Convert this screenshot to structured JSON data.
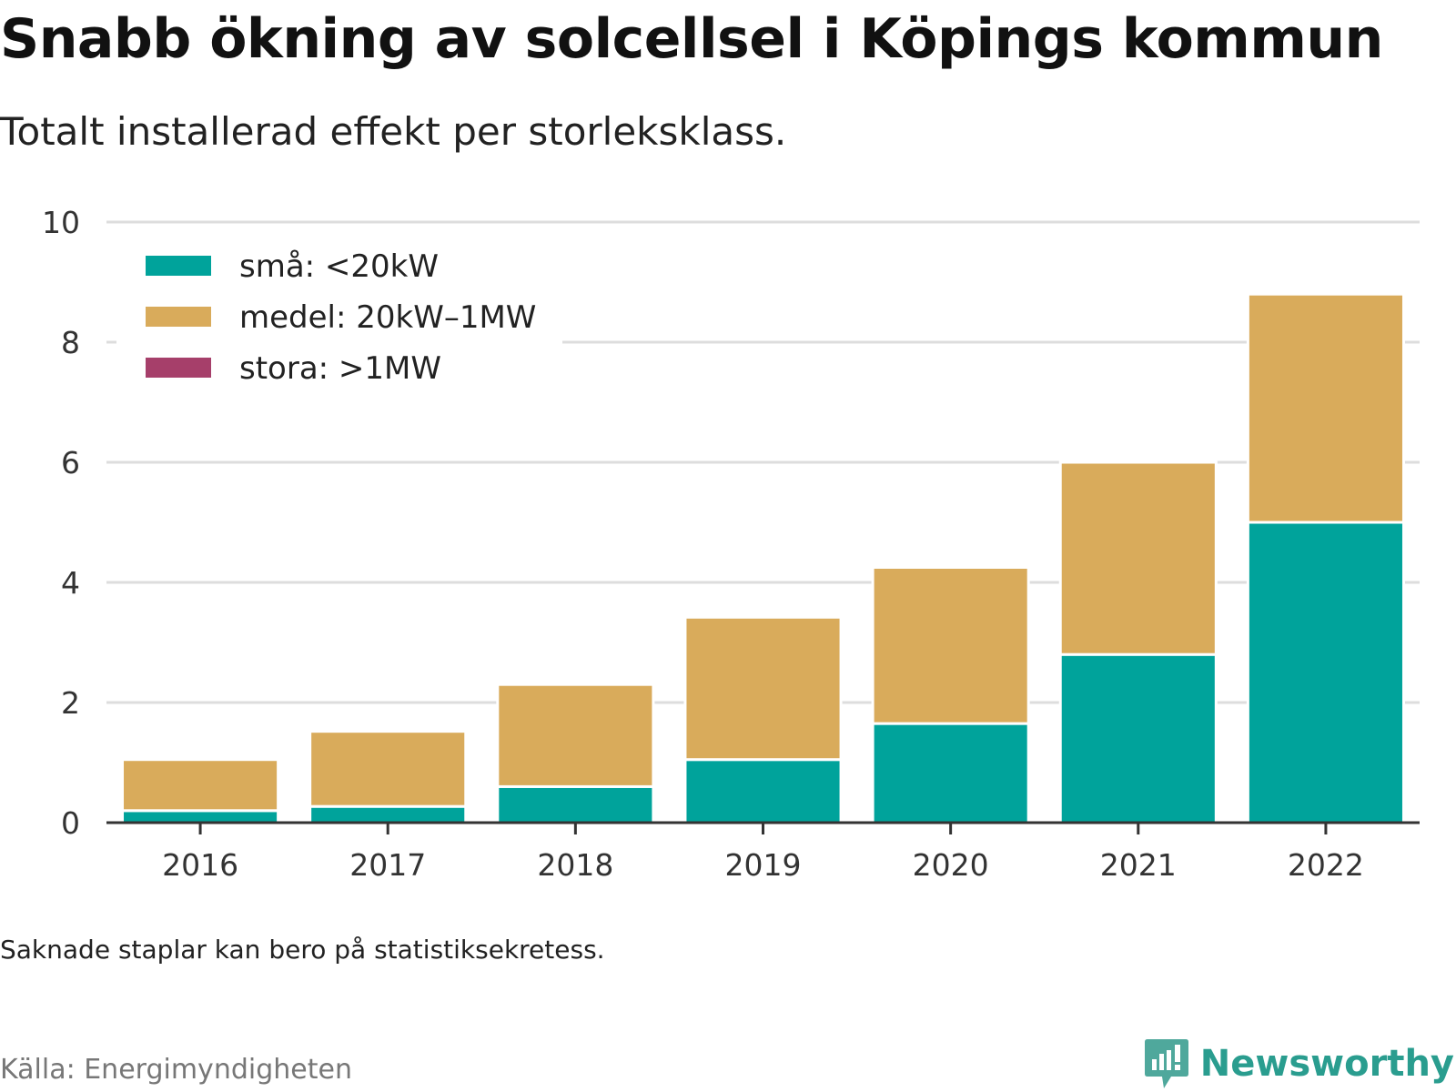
{
  "header": {
    "title": "Snabb ökning av solcellsel i Köpings kommun",
    "subtitle": "Totalt installerad effekt per storleksklass."
  },
  "footer": {
    "note": "Saknade staplar kan bero på statistiksekretess.",
    "source": "Källa: Energimyndigheten",
    "brand": "Newsworthy",
    "brand_icon": "newsworthy-logo-icon"
  },
  "chart_data": {
    "type": "bar",
    "stacked": true,
    "categories": [
      "2016",
      "2017",
      "2018",
      "2019",
      "2020",
      "2021",
      "2022"
    ],
    "series": [
      {
        "name": "små: <20kW",
        "color": "#00a39b",
        "values": [
          0.2,
          0.27,
          0.6,
          1.05,
          1.65,
          2.8,
          5.0
        ]
      },
      {
        "name": "medel: 20kW–1MW",
        "color": "#d9ab5b",
        "values": [
          0.85,
          1.25,
          1.7,
          2.37,
          2.6,
          3.2,
          3.8
        ]
      },
      {
        "name": "stora: >1MW",
        "color": "#a63f6a",
        "values": [
          0,
          0,
          0,
          0,
          0,
          0,
          0
        ]
      }
    ],
    "yticks": [
      0,
      2,
      4,
      6,
      8,
      10
    ],
    "ylim": [
      0,
      10
    ],
    "xlabel": "",
    "ylabel": "",
    "grid": true,
    "legend": "top-left"
  }
}
